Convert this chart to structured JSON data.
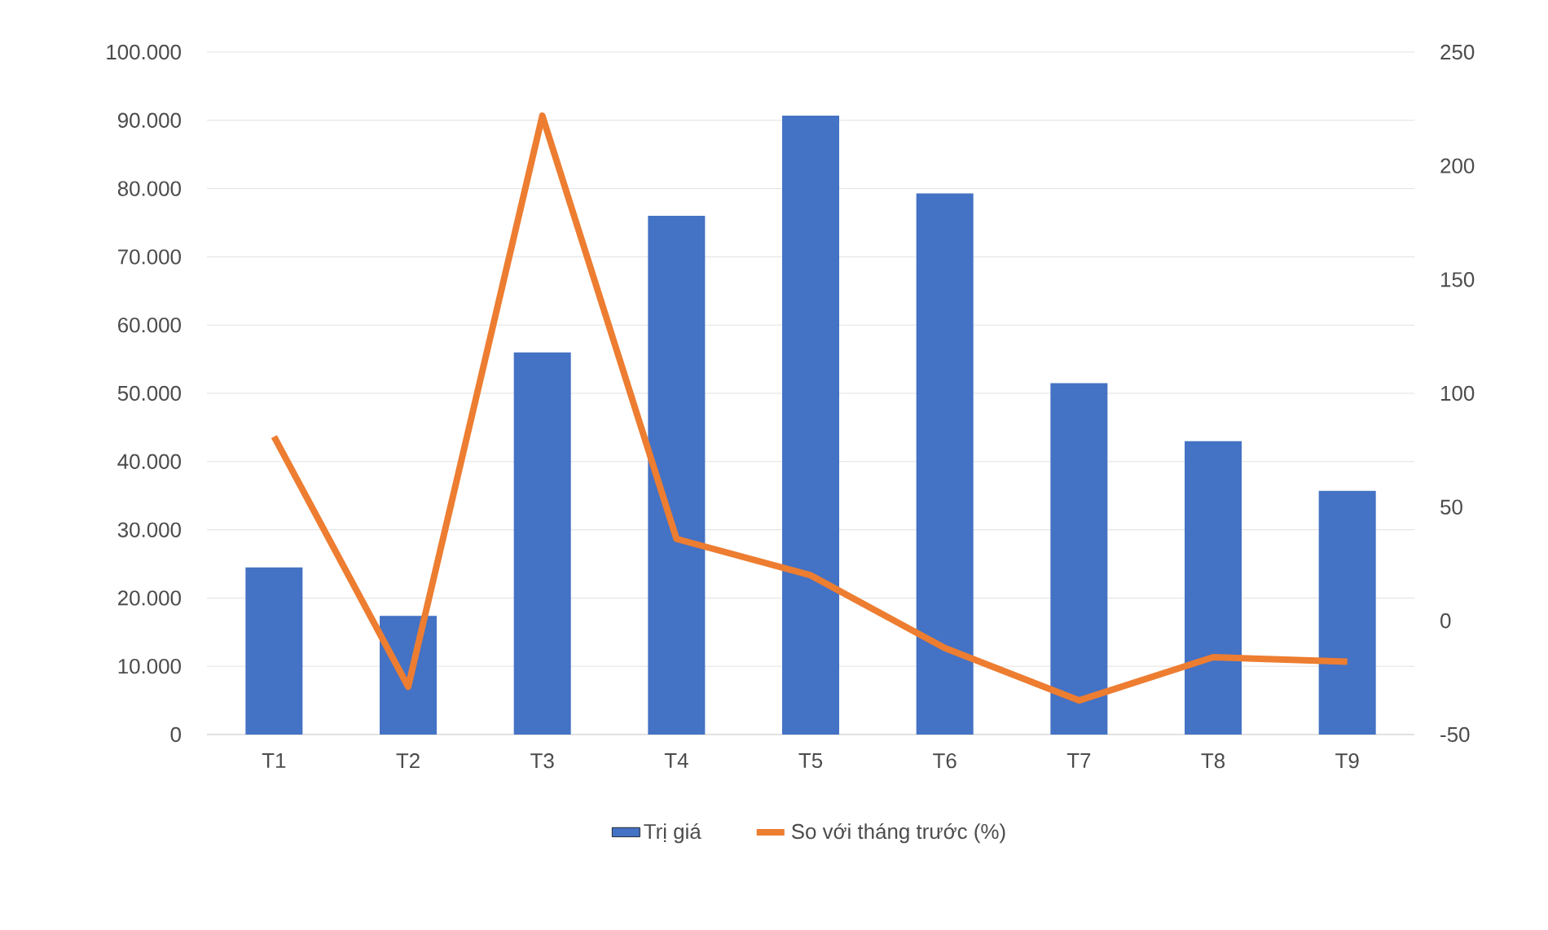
{
  "chart_data": {
    "type": "bar",
    "categories": [
      "T1",
      "T2",
      "T3",
      "T4",
      "T5",
      "T6",
      "T7",
      "T8",
      "T9"
    ],
    "series": [
      {
        "name": "Trị giá",
        "color": "#4472c4",
        "values": [
          24500,
          17400,
          56000,
          76000,
          90700,
          79300,
          51500,
          43000,
          35700
        ]
      },
      {
        "name": "So với tháng trước (%)",
        "type": "line",
        "axis": "y2",
        "color": "#ed7d31",
        "values": [
          81,
          -29,
          222,
          36,
          20,
          -12,
          -35,
          -16,
          -18
        ]
      }
    ],
    "ylim": [
      0,
      100000
    ],
    "yticks": [
      {
        "value": 0,
        "label": "0"
      },
      {
        "value": 10000,
        "label": "10.000"
      },
      {
        "value": 20000,
        "label": "20.000"
      },
      {
        "value": 30000,
        "label": "30.000"
      },
      {
        "value": 40000,
        "label": "40.000"
      },
      {
        "value": 50000,
        "label": "50.000"
      },
      {
        "value": 60000,
        "label": "60.000"
      },
      {
        "value": 70000,
        "label": "70.000"
      },
      {
        "value": 80000,
        "label": "80.000"
      },
      {
        "value": 90000,
        "label": "90.000"
      },
      {
        "value": 100000,
        "label": "100.000"
      }
    ],
    "y2lim": [
      -50,
      250
    ],
    "y2ticks": [
      -50,
      0,
      50,
      100,
      150,
      200,
      250
    ],
    "grid": "y",
    "legend": "bottom",
    "marker": "none",
    "line_style": "solid"
  }
}
